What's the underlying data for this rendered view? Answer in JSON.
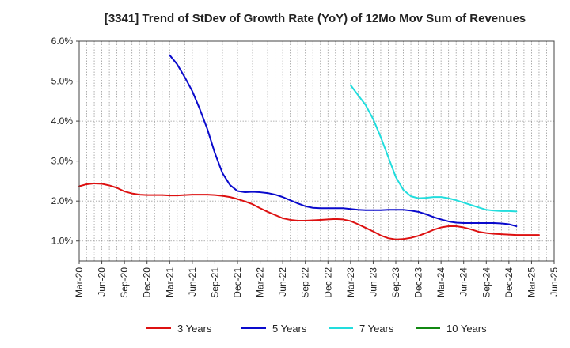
{
  "chart_data": {
    "type": "line",
    "title": "[3341]  Trend of StDev of Growth Rate (YoY) of 12Mo Mov Sum of Revenues",
    "xlabel": "",
    "ylabel": "",
    "y_unit": "%",
    "ylim": [
      0.5,
      6.0
    ],
    "y_ticks": [
      1.0,
      2.0,
      3.0,
      4.0,
      5.0,
      6.0
    ],
    "y_tick_labels": [
      "1.0%",
      "2.0%",
      "3.0%",
      "4.0%",
      "5.0%",
      "6.0%"
    ],
    "x_ticks": [
      "Mar-20",
      "Jun-20",
      "Sep-20",
      "Dec-20",
      "Mar-21",
      "Jun-21",
      "Sep-21",
      "Dec-21",
      "Mar-22",
      "Jun-22",
      "Sep-22",
      "Dec-22",
      "Mar-23",
      "Jun-23",
      "Sep-23",
      "Dec-23",
      "Mar-24",
      "Jun-24",
      "Sep-24",
      "Dec-24",
      "Mar-25",
      "Jun-25"
    ],
    "x_range": [
      "Mar-20",
      "Jun-25"
    ],
    "grid": true,
    "legend_position": "bottom",
    "series": [
      {
        "name": "3 Years",
        "color": "#dd1111",
        "start": "Mar-20",
        "values": [
          2.37,
          2.42,
          2.44,
          2.43,
          2.39,
          2.33,
          2.24,
          2.19,
          2.16,
          2.15,
          2.15,
          2.15,
          2.14,
          2.14,
          2.15,
          2.16,
          2.16,
          2.16,
          2.15,
          2.13,
          2.1,
          2.05,
          1.99,
          1.92,
          1.82,
          1.73,
          1.65,
          1.57,
          1.53,
          1.51,
          1.51,
          1.52,
          1.53,
          1.54,
          1.55,
          1.54,
          1.5,
          1.42,
          1.33,
          1.24,
          1.14,
          1.07,
          1.04,
          1.05,
          1.08,
          1.13,
          1.2,
          1.28,
          1.34,
          1.37,
          1.37,
          1.34,
          1.29,
          1.23,
          1.2,
          1.18,
          1.17,
          1.16,
          1.15,
          1.15,
          1.15,
          1.15
        ]
      },
      {
        "name": "5 Years",
        "color": "#0a0acc",
        "start": "Mar-21",
        "values": [
          5.65,
          5.42,
          5.1,
          4.75,
          4.3,
          3.8,
          3.2,
          2.7,
          2.4,
          2.25,
          2.22,
          2.23,
          2.22,
          2.2,
          2.16,
          2.1,
          2.02,
          1.94,
          1.87,
          1.83,
          1.82,
          1.82,
          1.82,
          1.82,
          1.8,
          1.78,
          1.77,
          1.77,
          1.77,
          1.78,
          1.78,
          1.78,
          1.76,
          1.73,
          1.67,
          1.6,
          1.54,
          1.49,
          1.46,
          1.45,
          1.45,
          1.45,
          1.45,
          1.45,
          1.44,
          1.42,
          1.37
        ]
      },
      {
        "name": "7 Years",
        "color": "#22dddd",
        "start": "Mar-23",
        "values": [
          4.9,
          4.65,
          4.4,
          4.05,
          3.6,
          3.1,
          2.6,
          2.28,
          2.12,
          2.07,
          2.08,
          2.1,
          2.1,
          2.07,
          2.02,
          1.96,
          1.9,
          1.84,
          1.78,
          1.76,
          1.75,
          1.75,
          1.74
        ]
      },
      {
        "name": "10 Years",
        "color": "#118811",
        "start": "Mar-25",
        "values": []
      }
    ]
  }
}
